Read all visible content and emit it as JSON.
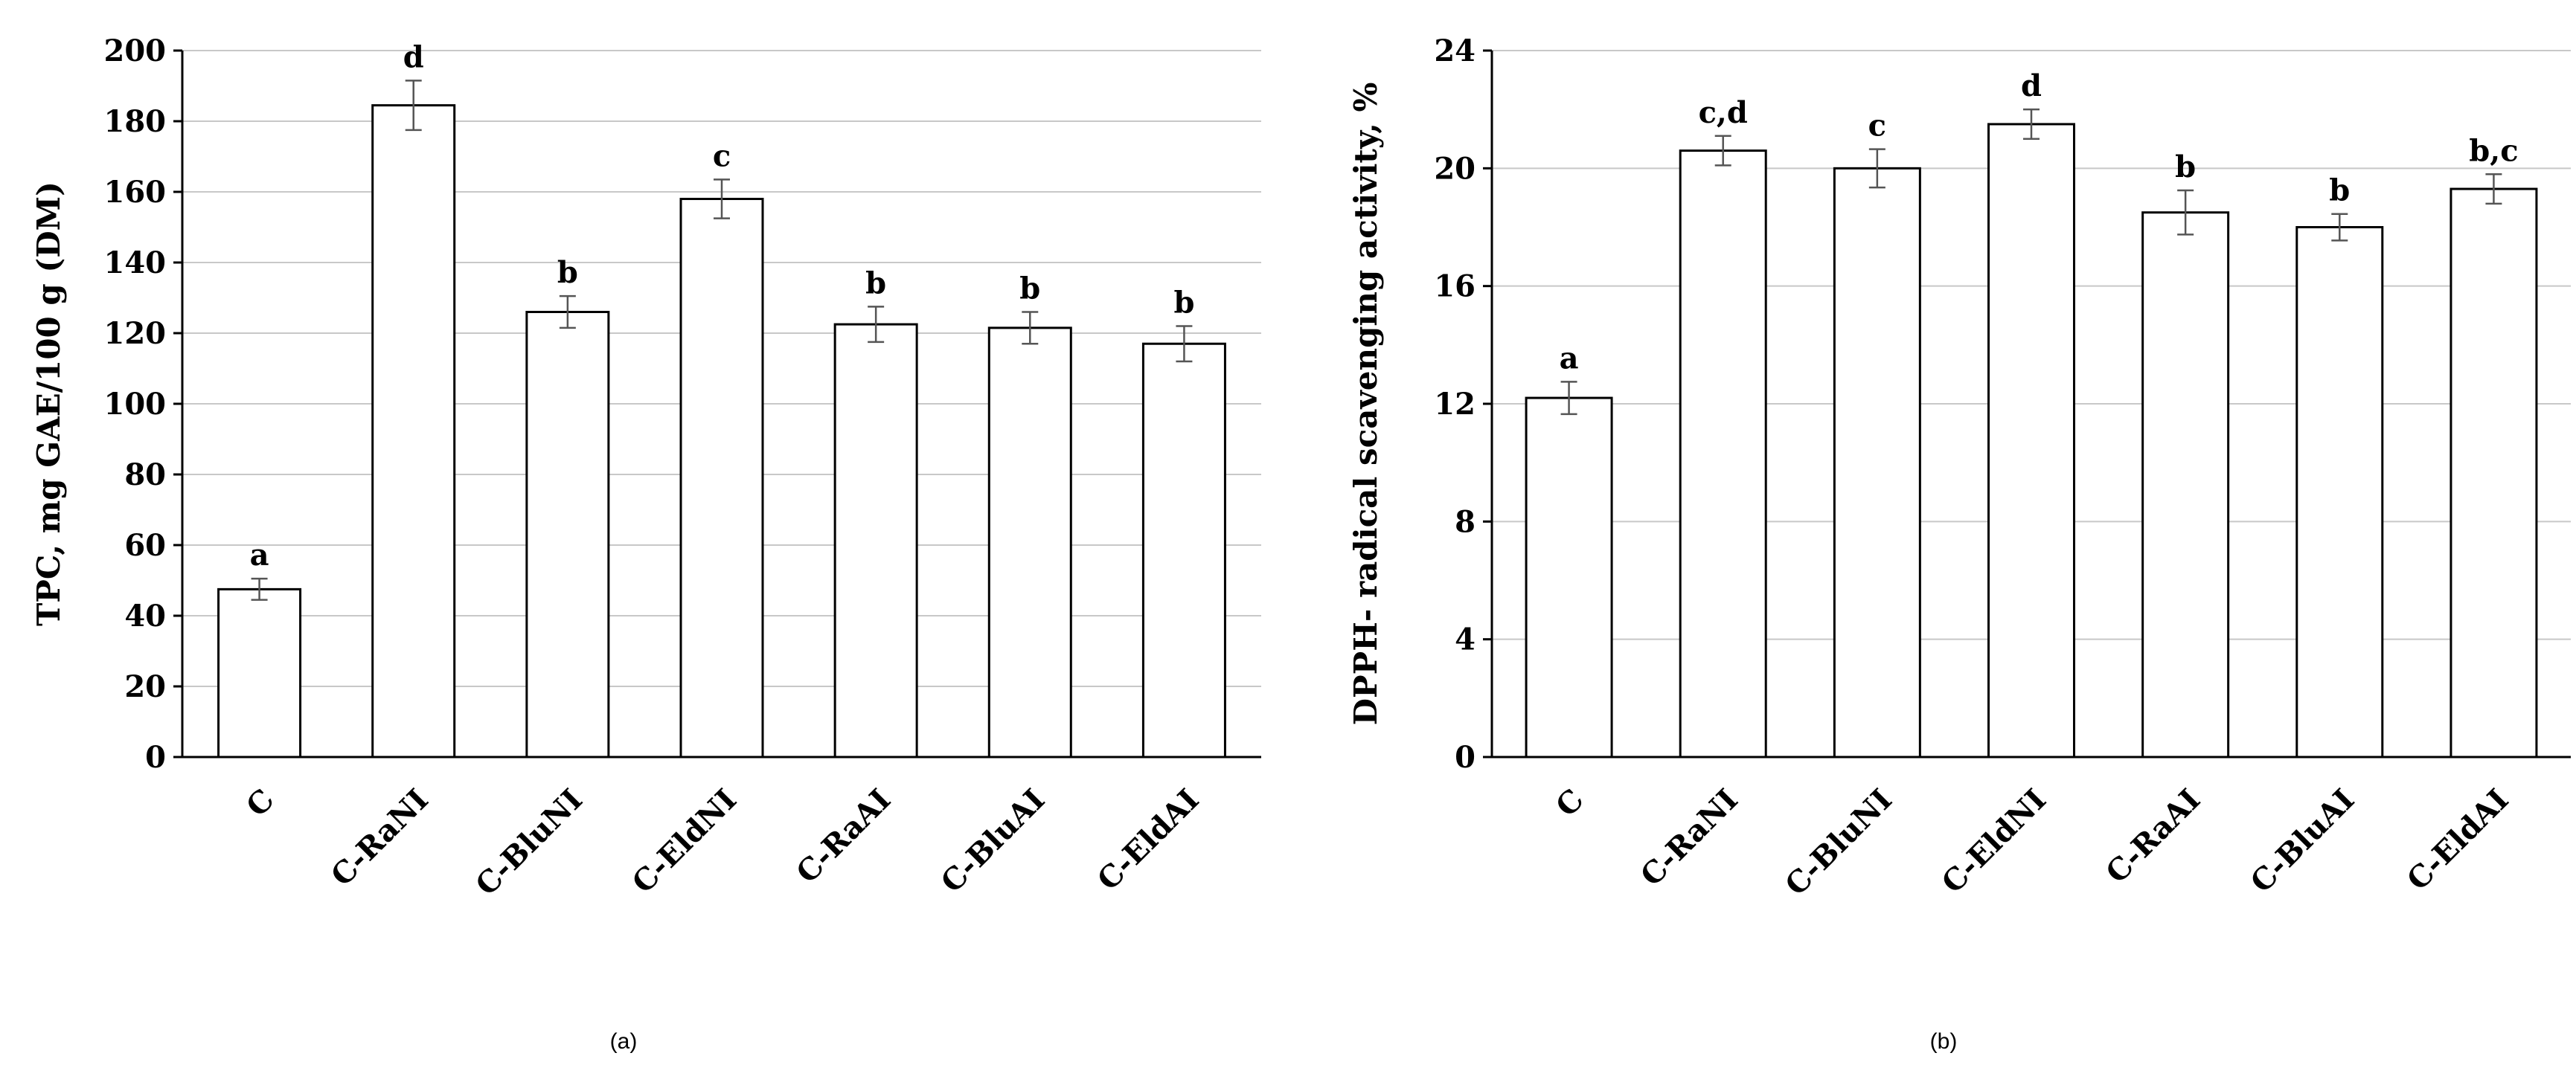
{
  "chart_data": [
    {
      "type": "bar",
      "panel_label": "(a)",
      "title": "",
      "xlabel": "",
      "ylabel": "TPC, mg GAE/100 g (DM)",
      "ylim": [
        0,
        200
      ],
      "yticks": [
        0,
        20,
        40,
        60,
        80,
        100,
        120,
        140,
        160,
        180,
        200
      ],
      "grid": true,
      "categories": [
        "C",
        "C-RaNI",
        "C-BluNI",
        "C-EldNI",
        "C-RaAI",
        "C-BluAI",
        "C-EldAI"
      ],
      "values": [
        47.5,
        184.5,
        126,
        158,
        122.5,
        121.5,
        117
      ],
      "errors": [
        3,
        7,
        4.5,
        5.5,
        5,
        4.5,
        5
      ],
      "significance": [
        "a",
        "d",
        "b",
        "c",
        "b",
        "b",
        "b"
      ]
    },
    {
      "type": "bar",
      "panel_label": "(b)",
      "title": "",
      "xlabel": "",
      "ylabel": "DPPH- radical scavenging activity, %",
      "ylim": [
        0,
        24
      ],
      "yticks": [
        0,
        4,
        8,
        12,
        16,
        20,
        24
      ],
      "grid": true,
      "categories": [
        "C",
        "C-RaNI",
        "C-BluNI",
        "C-EldNI",
        "C-RaAI",
        "C-BluAI",
        "C-EldAI"
      ],
      "values": [
        12.2,
        20.6,
        20,
        21.5,
        18.5,
        18,
        19.3
      ],
      "errors": [
        0.55,
        0.5,
        0.65,
        0.5,
        0.75,
        0.45,
        0.5
      ],
      "significance": [
        "a",
        "c,d",
        "c",
        "d",
        "b",
        "b",
        "b,c"
      ]
    }
  ]
}
